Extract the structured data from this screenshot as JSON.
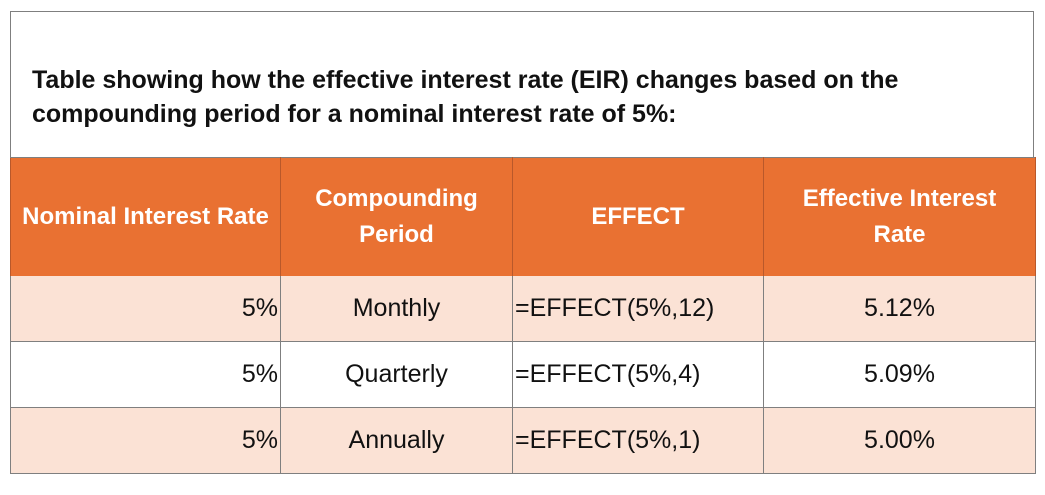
{
  "title": "Table showing how the effective interest rate (EIR) changes based on the compounding period for a nominal interest rate of 5%:",
  "table": {
    "headers": [
      "Nominal Interest Rate",
      "Compounding Period",
      "EFFECT",
      "Effective Interest Rate"
    ],
    "rows": [
      [
        "5%",
        "Monthly",
        "=EFFECT(5%,12)",
        "5.12%"
      ],
      [
        "5%",
        "Quarterly",
        "=EFFECT(5%,4)",
        "5.09%"
      ],
      [
        "5%",
        "Annually",
        "=EFFECT(5%,1)",
        "5.00%"
      ]
    ]
  },
  "colors": {
    "header_bg": "#e97132",
    "header_text": "#ffffff",
    "shaded_row_bg": "#fbe2d5",
    "plain_row_bg": "#ffffff",
    "border": "#7f7f7f"
  }
}
